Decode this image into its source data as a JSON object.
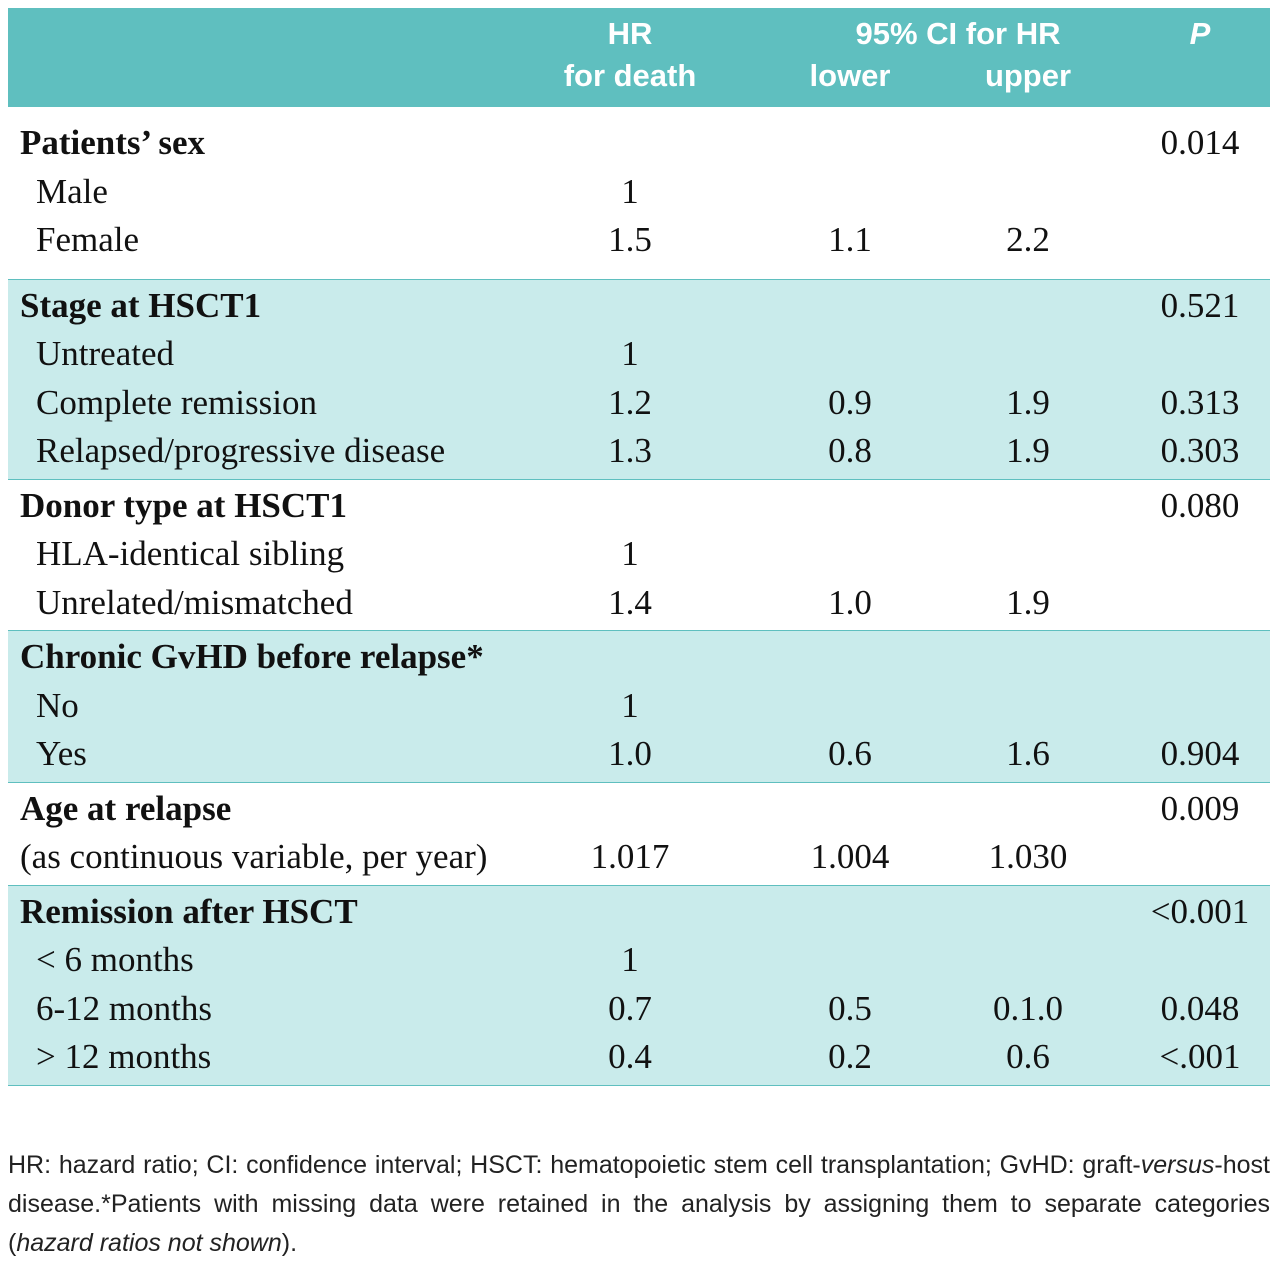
{
  "header": {
    "hr": [
      "HR",
      "for death"
    ],
    "ci": "95% CI for HR",
    "lower": "lower",
    "upper": "upper",
    "p": "P"
  },
  "table": {
    "groups": [
      {
        "title": "Patients’ sex",
        "p": "0.014",
        "shaded": false,
        "rows": [
          {
            "label": "Male",
            "hr": "1"
          },
          {
            "label": "Female",
            "hr": "1.5",
            "lower": "1.1",
            "upper": "2.2"
          }
        ]
      },
      {
        "title": "Stage at HSCT1",
        "p": "0.521",
        "shaded": true,
        "rows": [
          {
            "label": "Untreated",
            "hr": "1"
          },
          {
            "label": "Complete remission",
            "hr": "1.2",
            "lower": "0.9",
            "upper": "1.9",
            "p": "0.313"
          },
          {
            "label": "Relapsed/progressive disease",
            "hr": "1.3",
            "lower": "0.8",
            "upper": "1.9",
            "p": "0.303"
          }
        ]
      },
      {
        "title": "Donor type at HSCT1",
        "p": "0.080",
        "shaded": false,
        "rows": [
          {
            "label": "HLA-identical sibling",
            "hr": "1"
          },
          {
            "label": "Unrelated/mismatched",
            "hr": "1.4",
            "lower": "1.0",
            "upper": "1.9"
          }
        ]
      },
      {
        "title": "Chronic GvHD before relapse*",
        "shaded": true,
        "rows": [
          {
            "label": "No",
            "hr": "1"
          },
          {
            "label": "Yes",
            "hr": "1.0",
            "lower": "0.6",
            "upper": "1.6",
            "p": "0.904"
          }
        ]
      },
      {
        "title": "Age at relapse",
        "p": "0.009",
        "shaded": false,
        "rows": [
          {
            "label": "(as continuous variable, per year)",
            "hr": "1.017",
            "lower": "1.004",
            "upper": "1.030"
          }
        ]
      },
      {
        "title": "Remission after HSCT",
        "p": "<0.001",
        "shaded": true,
        "rows": [
          {
            "label": "< 6 months",
            "hr": "1"
          },
          {
            "label": "6-12 months",
            "hr": "0.7",
            "lower": "0.5",
            "upper": "0.1.0",
            "p": "0.048"
          },
          {
            "label": "> 12 months",
            "hr": "0.4",
            "lower": "0.2",
            "upper": "0.6",
            "p": "<.001"
          }
        ]
      }
    ]
  },
  "footnote": [
    {
      "text": "HR: hazard ratio; CI: confidence interval; HSCT: hematopoietic stem cell transplantation; GvHD: graft-"
    },
    {
      "text": "versus",
      "italic": true
    },
    {
      "text": "-host disease.*Patients with missing data were retained in the analysis by assigning them to separate categories ("
    },
    {
      "text": "hazard ratios not shown",
      "italic": true
    },
    {
      "text": ")."
    }
  ]
}
